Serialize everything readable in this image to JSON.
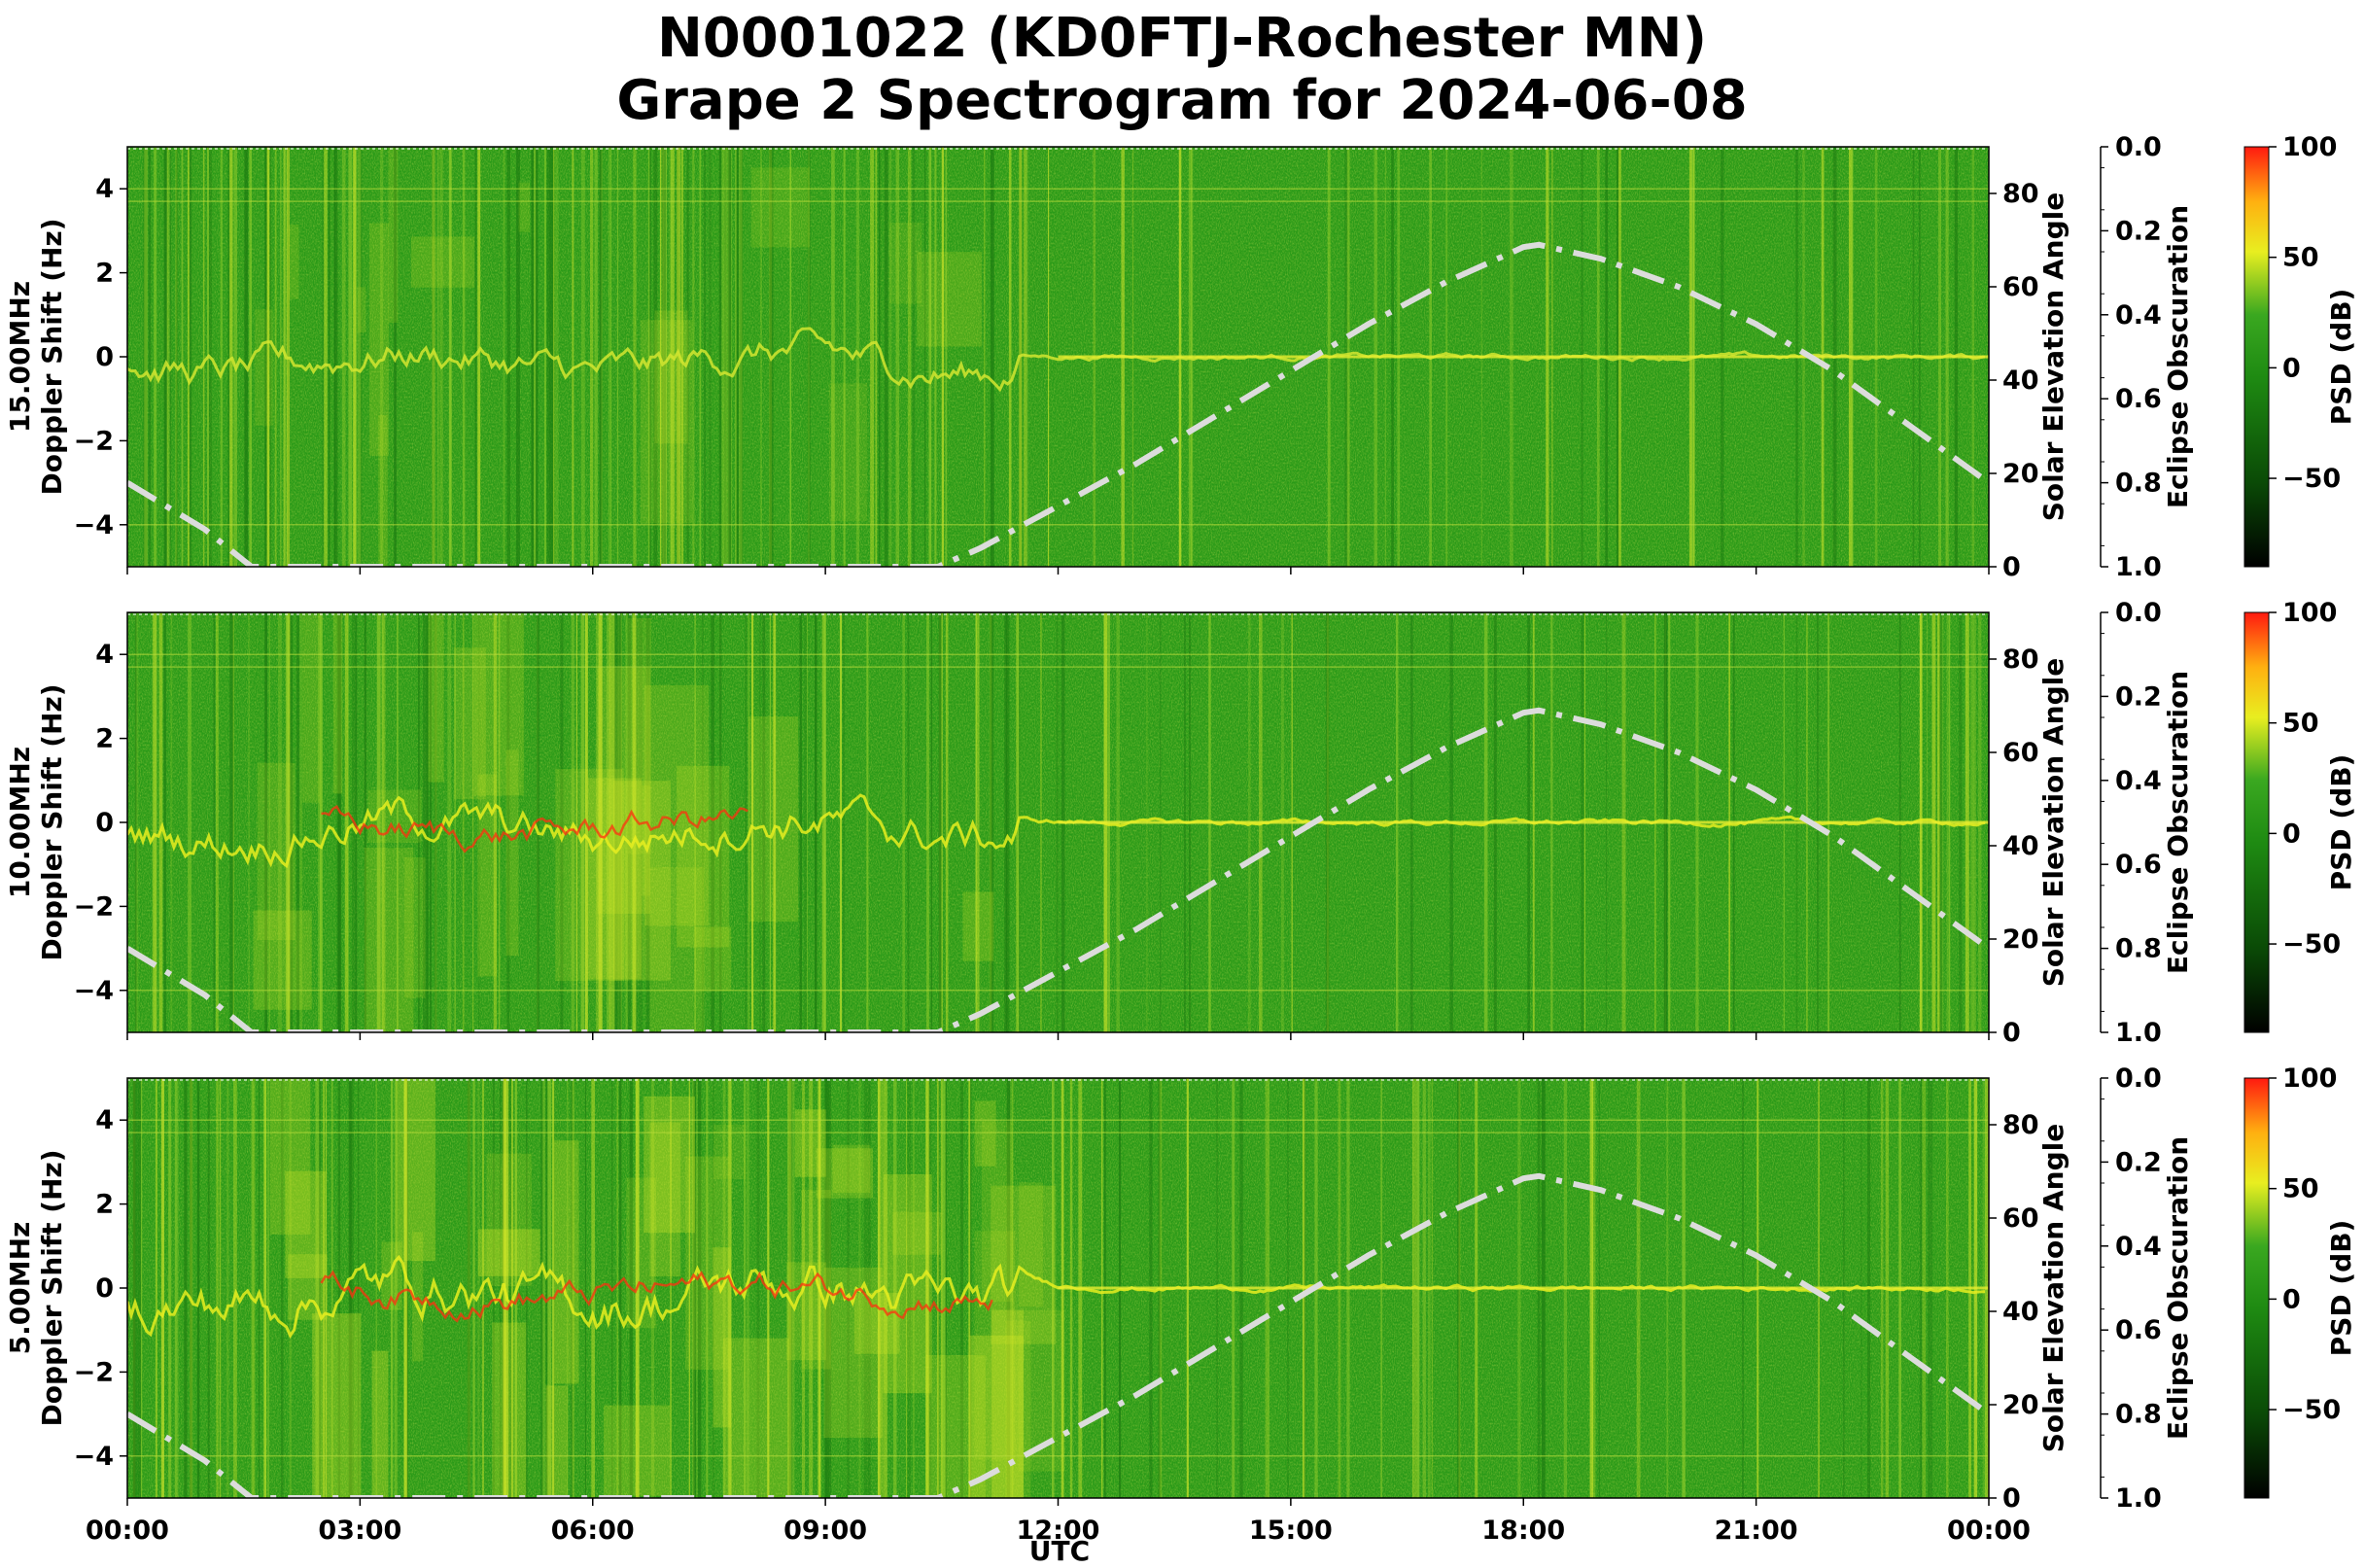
{
  "figure": {
    "title_line1": "N0001022 (KD0FTJ-Rochester MN)",
    "title_line2": "Grape 2 Spectrogram for 2024-06-08",
    "xlabel": "UTC"
  },
  "chart_data": [
    {
      "type": "heatmap",
      "frequency": "15.00MHz",
      "ylabel": "Doppler Shift (Hz)",
      "ylim": [
        -5,
        5
      ],
      "yticks": [
        -4,
        -2,
        0,
        2,
        4
      ],
      "secondary_axis": {
        "label": "Solar Elevation Angle",
        "ylim": [
          0,
          90
        ],
        "ticks": [
          0,
          20,
          40,
          60,
          80
        ]
      },
      "eclipse_axis": {
        "label": "Eclipse Obscuration",
        "ylim": [
          1.0,
          0.0
        ],
        "ticks": [
          "0.0",
          "0.2",
          "0.4",
          "0.6",
          "0.8",
          "1.0"
        ]
      },
      "colorbar": {
        "label": "PSD (dB)",
        "range": [
          -90,
          100
        ],
        "ticks": [
          -50,
          0,
          50,
          100
        ]
      },
      "background_psd_db": 5,
      "activity": 0.35
    },
    {
      "type": "heatmap",
      "frequency": "10.00MHz",
      "ylabel": "Doppler Shift (Hz)",
      "ylim": [
        -5,
        5
      ],
      "yticks": [
        -4,
        -2,
        0,
        2,
        4
      ],
      "secondary_axis": {
        "label": "Solar Elevation Angle",
        "ylim": [
          0,
          90
        ],
        "ticks": [
          0,
          20,
          40,
          60,
          80
        ]
      },
      "eclipse_axis": {
        "label": "Eclipse Obscuration",
        "ylim": [
          1.0,
          0.0
        ],
        "ticks": [
          "0.0",
          "0.2",
          "0.4",
          "0.6",
          "0.8",
          "1.0"
        ]
      },
      "colorbar": {
        "label": "PSD (dB)",
        "range": [
          -90,
          100
        ],
        "ticks": [
          -50,
          0,
          50,
          100
        ]
      },
      "background_psd_db": 5,
      "activity": 0.6
    },
    {
      "type": "heatmap",
      "frequency": "5.00MHz",
      "ylabel": "Doppler Shift (Hz)",
      "ylim": [
        -5,
        5
      ],
      "yticks": [
        -4,
        -2,
        0,
        2,
        4
      ],
      "secondary_axis": {
        "label": "Solar Elevation Angle",
        "ylim": [
          0,
          90
        ],
        "ticks": [
          0,
          20,
          40,
          60,
          80
        ]
      },
      "eclipse_axis": {
        "label": "Eclipse Obscuration",
        "ylim": [
          1.0,
          0.0
        ],
        "ticks": [
          "0.0",
          "0.2",
          "0.4",
          "0.6",
          "0.8",
          "1.0"
        ]
      },
      "colorbar": {
        "label": "PSD (dB)",
        "range": [
          -90,
          100
        ],
        "ticks": [
          -50,
          0,
          50,
          100
        ]
      },
      "background_psd_db": 8,
      "activity": 1.0
    }
  ],
  "x_axis": {
    "range_hours": [
      0,
      24
    ],
    "ticks": [
      {
        "h": 0,
        "label": "00:00"
      },
      {
        "h": 3,
        "label": "03:00"
      },
      {
        "h": 6,
        "label": "06:00"
      },
      {
        "h": 9,
        "label": "09:00"
      },
      {
        "h": 12,
        "label": "12:00"
      },
      {
        "h": 15,
        "label": "15:00"
      },
      {
        "h": 18,
        "label": "18:00"
      },
      {
        "h": 21,
        "label": "21:00"
      },
      {
        "h": 24,
        "label": "00:00"
      }
    ]
  },
  "solar_elevation_curve": {
    "style": "dash-dot",
    "color": "#dcdcdc",
    "points_hours_deg": [
      [
        0,
        18
      ],
      [
        1,
        8
      ],
      [
        1.6,
        0
      ],
      [
        10.45,
        0
      ],
      [
        11,
        4
      ],
      [
        12,
        13
      ],
      [
        13,
        22
      ],
      [
        14,
        32
      ],
      [
        15,
        42
      ],
      [
        16,
        52
      ],
      [
        17,
        61
      ],
      [
        18,
        68.5
      ],
      [
        18.2,
        69
      ],
      [
        19,
        66
      ],
      [
        20,
        60
      ],
      [
        21,
        52
      ],
      [
        22,
        42
      ],
      [
        23,
        30
      ],
      [
        24,
        18
      ]
    ]
  },
  "colors": {
    "background_green": "#2a9a18",
    "signal_yellow": "#e8ee20",
    "strong_red": "#ff3010"
  }
}
